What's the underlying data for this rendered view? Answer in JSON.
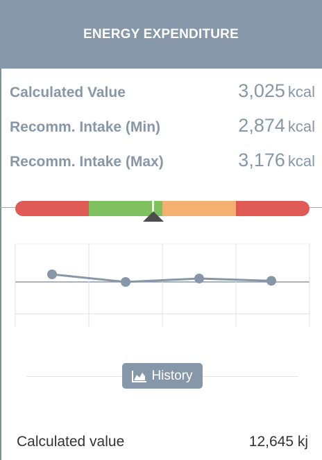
{
  "header": {
    "title": "ENERGY EXPENDITURE"
  },
  "metrics": [
    {
      "label": "Calculated Value",
      "value": "3,025",
      "unit": "kcal"
    },
    {
      "label": "Recomm. Intake (Min)",
      "value": "2,874",
      "unit": "kcal"
    },
    {
      "label": "Recomm. Intake (Max)",
      "value": "3,176",
      "unit": "kcal"
    }
  ],
  "range_bar": {
    "segment_colors": [
      "#e05a55",
      "#7fc05f",
      "#f3b06e",
      "#e05a55"
    ],
    "marker_position": 0.5
  },
  "history": {
    "label": "History",
    "icon": "area-chart-icon"
  },
  "footer": {
    "label": "Calculated value",
    "value": "12,645 kj"
  },
  "chart_data": {
    "type": "line",
    "x": [
      1,
      2,
      3,
      4
    ],
    "values": [
      1.0,
      0.0,
      0.45,
      0.15
    ],
    "grid": true,
    "color": "#8597a8"
  }
}
